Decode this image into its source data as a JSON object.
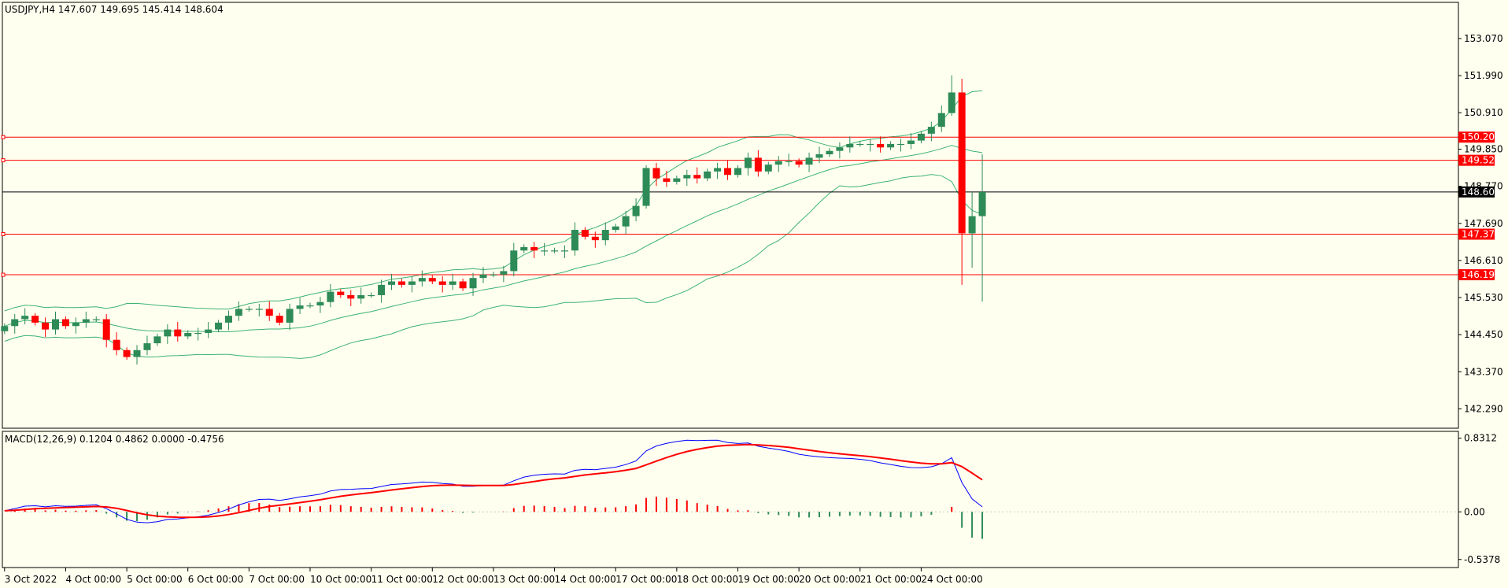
{
  "header": {
    "main_info": "USDJPY,H4  147.607 149.695 145.414 148.604",
    "macd_info": "MACD(12,26,9) 0.1204 0.4862 0.0000 -0.4756"
  },
  "colors": {
    "background": "#fffff0",
    "bull": "#2e8b57",
    "bear": "#ff0000",
    "bollinger": "#3cb371",
    "level_line": "#ff0000",
    "current_price": "#000000",
    "macd_line": "#0000ff",
    "signal_line": "#ff0000"
  },
  "chart_data": [
    {
      "type": "candlestick",
      "symbol": "USDJPY",
      "timeframe": "H4",
      "ylim": [
        141.75,
        154.1
      ],
      "y_ticks": [
        "153.070",
        "151.990",
        "150.910",
        "149.850",
        "148.770",
        "147.690",
        "146.610",
        "145.530",
        "144.450",
        "143.370",
        "142.290"
      ],
      "x_ticks": [
        "3 Oct 2022",
        "4 Oct 00:00",
        "5 Oct 00:00",
        "6 Oct 00:00",
        "7 Oct 00:00",
        "10 Oct 00:00",
        "11 Oct 00:00",
        "12 Oct 00:00",
        "13 Oct 00:00",
        "14 Oct 00:00",
        "17 Oct 00:00",
        "18 Oct 00:00",
        "19 Oct 00:00",
        "20 Oct 00:00",
        "21 Oct 00:00",
        "24 Oct 00:00"
      ],
      "levels": [
        {
          "value": 150.2,
          "label": "150.200"
        },
        {
          "value": 149.526,
          "label": "149.526"
        },
        {
          "value": 147.375,
          "label": "147.375"
        },
        {
          "value": 146.194,
          "label": "146.194"
        }
      ],
      "current_price": {
        "value": 148.604,
        "label": "148.604"
      },
      "closes": [
        144.7,
        144.9,
        145.0,
        144.8,
        144.6,
        144.9,
        144.7,
        144.8,
        144.9,
        144.9,
        144.3,
        144.0,
        143.8,
        144.0,
        144.2,
        144.4,
        144.6,
        144.4,
        144.5,
        144.5,
        144.6,
        144.8,
        145.0,
        145.2,
        145.2,
        145.2,
        145.0,
        144.8,
        145.2,
        145.3,
        145.3,
        145.4,
        145.7,
        145.6,
        145.5,
        145.6,
        145.6,
        145.9,
        146.0,
        145.9,
        146.0,
        146.1,
        146.0,
        145.9,
        146.0,
        145.8,
        146.1,
        146.2,
        146.2,
        146.3,
        146.9,
        147.0,
        146.9,
        146.9,
        146.9,
        146.9,
        147.5,
        147.3,
        147.2,
        147.5,
        147.6,
        147.9,
        148.2,
        149.3,
        149.0,
        148.9,
        149.0,
        149.1,
        149.0,
        149.2,
        149.3,
        149.1,
        149.3,
        149.6,
        149.2,
        149.4,
        149.5,
        149.5,
        149.4,
        149.6,
        149.7,
        149.8,
        149.9,
        150.0,
        150.0,
        150.0,
        149.9,
        150.0,
        150.0,
        150.1,
        150.3,
        150.5,
        150.9,
        151.5,
        147.4,
        147.9,
        148.6
      ]
    },
    {
      "type": "macd",
      "params": "MACD(12,26,9)",
      "values": [
        0.1204,
        0.4862,
        0.0,
        -0.4756
      ],
      "ylim": [
        -0.62,
        0.9
      ],
      "y_ticks": [
        0.8312,
        0.0,
        -0.5378
      ],
      "y_tick_labels": [
        "0.8312",
        "0.00",
        "-0.5378"
      ]
    }
  ]
}
